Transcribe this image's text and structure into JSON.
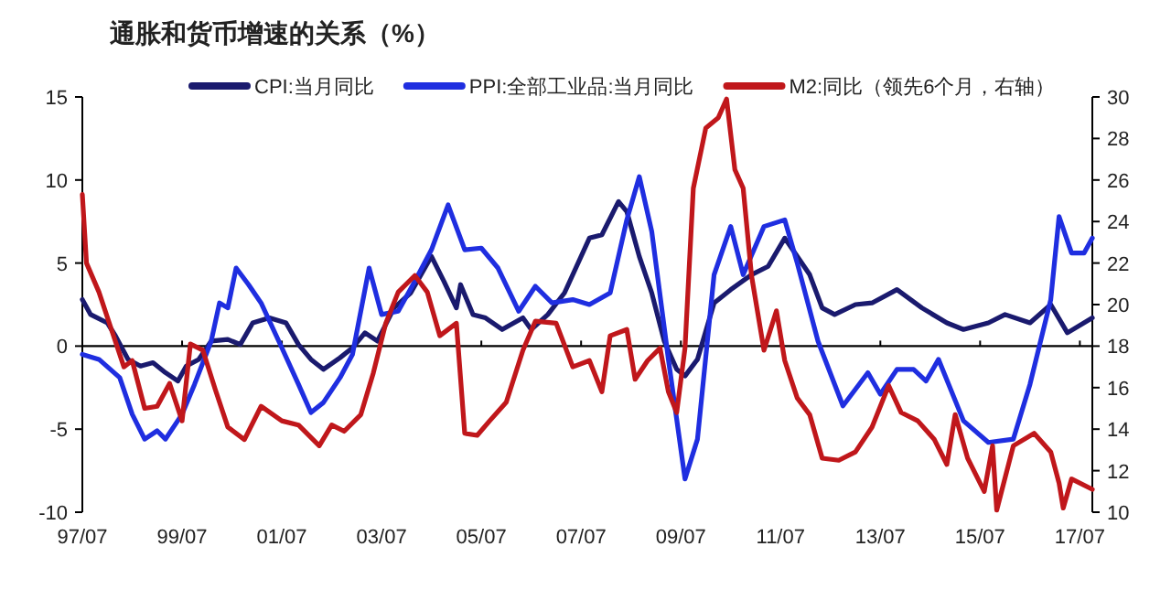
{
  "chart_data": {
    "type": "line",
    "title": "通胀和货币增速的关系（%）",
    "legend": "top",
    "xlim": [
      "1997-07",
      "2017-10"
    ],
    "xticks": [
      {
        "value": "1997-07",
        "label": "97/07"
      },
      {
        "value": "1999-07",
        "label": "99/07"
      },
      {
        "value": "2001-07",
        "label": "01/07"
      },
      {
        "value": "2003-07",
        "label": "03/07"
      },
      {
        "value": "2005-07",
        "label": "05/07"
      },
      {
        "value": "2007-07",
        "label": "07/07"
      },
      {
        "value": "2009-07",
        "label": "09/07"
      },
      {
        "value": "2011-07",
        "label": "11/07"
      },
      {
        "value": "2013-07",
        "label": "13/07"
      },
      {
        "value": "2015-07",
        "label": "15/07"
      },
      {
        "value": "2017-07",
        "label": "17/07"
      }
    ],
    "ylim": [
      -10,
      15
    ],
    "yticks": [
      -10,
      -5,
      0,
      5,
      10,
      15
    ],
    "y2lim": [
      10,
      30
    ],
    "y2ticks": [
      10,
      12,
      14,
      16,
      18,
      20,
      22,
      24,
      26,
      28,
      30
    ],
    "ref_lines": [
      {
        "axis": "y",
        "value": 0,
        "color": "#000000"
      }
    ],
    "series": [
      {
        "name": "CPI:当月同比",
        "color": "#1a1a6e",
        "x": [
          "1997-07",
          "1997-09",
          "1998-01",
          "1998-03",
          "1998-06",
          "1998-09",
          "1998-12",
          "1999-03",
          "1999-06",
          "1999-08",
          "1999-11",
          "2000-02",
          "2000-06",
          "2000-09",
          "2000-12",
          "2001-04",
          "2001-08",
          "2001-11",
          "2002-02",
          "2002-05",
          "2002-09",
          "2002-12",
          "2003-03",
          "2003-06",
          "2003-10",
          "2004-02",
          "2004-07",
          "2004-10",
          "2005-01",
          "2005-02",
          "2005-05",
          "2005-08",
          "2005-12",
          "2006-05",
          "2006-07",
          "2006-11",
          "2007-03",
          "2007-09",
          "2007-12",
          "2008-04",
          "2008-06",
          "2008-09",
          "2008-12",
          "2009-03",
          "2009-06",
          "2009-08",
          "2009-11",
          "2010-03",
          "2010-07",
          "2010-12",
          "2011-04",
          "2011-08",
          "2011-11",
          "2012-02",
          "2012-05",
          "2012-08",
          "2013-01",
          "2013-05",
          "2013-11",
          "2014-05",
          "2014-11",
          "2015-03",
          "2015-09",
          "2016-01",
          "2016-07",
          "2016-12",
          "2017-04",
          "2017-10"
        ],
        "values": [
          2.8,
          1.9,
          1.4,
          0.6,
          -0.8,
          -1.2,
          -1.0,
          -1.6,
          -2.1,
          -1.2,
          -0.8,
          0.3,
          0.4,
          0.1,
          1.4,
          1.7,
          1.4,
          0.1,
          -0.8,
          -1.4,
          -0.7,
          -0.1,
          0.8,
          0.3,
          2.3,
          3.2,
          5.4,
          3.9,
          2.3,
          3.7,
          1.9,
          1.7,
          1.0,
          1.7,
          1.0,
          1.9,
          3.2,
          6.5,
          6.7,
          8.7,
          8.1,
          5.4,
          3.2,
          0.3,
          -1.4,
          -1.8,
          -0.8,
          2.6,
          3.4,
          4.3,
          4.8,
          6.5,
          5.4,
          4.3,
          2.3,
          1.9,
          2.5,
          2.6,
          3.4,
          2.3,
          1.4,
          1.0,
          1.4,
          1.9,
          1.4,
          2.5,
          0.8,
          1.7
        ]
      },
      {
        "name": "PPI:全部工业品:当月同比",
        "color": "#1f2ee0",
        "x": [
          "1997-07",
          "1997-11",
          "1998-04",
          "1998-07",
          "1998-10",
          "1999-01",
          "1999-03",
          "1999-07",
          "1999-10",
          "2000-02",
          "2000-04",
          "2000-06",
          "2000-08",
          "2000-11",
          "2001-02",
          "2001-07",
          "2001-11",
          "2002-02",
          "2002-05",
          "2002-09",
          "2002-12",
          "2003-04",
          "2003-07",
          "2003-11",
          "2004-03",
          "2004-07",
          "2004-11",
          "2005-03",
          "2005-07",
          "2005-11",
          "2006-04",
          "2006-08",
          "2006-12",
          "2007-05",
          "2007-09",
          "2008-02",
          "2008-06",
          "2008-09",
          "2008-12",
          "2009-04",
          "2009-08",
          "2009-11",
          "2010-03",
          "2010-07",
          "2010-10",
          "2011-03",
          "2011-08",
          "2011-11",
          "2012-04",
          "2012-10",
          "2013-04",
          "2013-07",
          "2013-11",
          "2014-03",
          "2014-06",
          "2014-09",
          "2015-03",
          "2015-09",
          "2016-03",
          "2016-07",
          "2016-12",
          "2017-02",
          "2017-05",
          "2017-08",
          "2017-10"
        ],
        "values": [
          -0.5,
          -0.8,
          -1.9,
          -4.1,
          -5.6,
          -5.1,
          -5.6,
          -4.1,
          -2.3,
          0.3,
          2.6,
          2.3,
          4.7,
          3.7,
          2.6,
          -0.1,
          -2.3,
          -4.0,
          -3.4,
          -1.9,
          -0.5,
          4.7,
          1.9,
          2.1,
          3.9,
          5.8,
          8.5,
          5.8,
          5.9,
          4.7,
          2.1,
          3.6,
          2.6,
          2.8,
          2.5,
          3.2,
          7.6,
          10.2,
          6.9,
          -0.8,
          -8.0,
          -5.6,
          4.3,
          7.2,
          4.3,
          7.2,
          7.6,
          5.0,
          0.3,
          -3.6,
          -1.6,
          -2.9,
          -1.4,
          -1.4,
          -2.1,
          -0.8,
          -4.5,
          -5.8,
          -5.6,
          -2.3,
          2.8,
          7.8,
          5.6,
          5.6,
          6.5
        ]
      },
      {
        "name": "M2:同比（领先6个月，右轴）",
        "color": "#c0171b",
        "axis": "y2",
        "x": [
          "1997-07",
          "1997-08",
          "1997-11",
          "1998-02",
          "1998-05",
          "1998-07",
          "1998-10",
          "1999-01",
          "1999-04",
          "1999-07",
          "1999-09",
          "1999-12",
          "2000-03",
          "2000-06",
          "2000-10",
          "2001-02",
          "2001-07",
          "2001-11",
          "2002-04",
          "2002-07",
          "2002-10",
          "2003-02",
          "2003-05",
          "2003-08",
          "2003-11",
          "2004-03",
          "2004-06",
          "2004-09",
          "2005-01",
          "2005-03",
          "2005-06",
          "2005-09",
          "2006-01",
          "2006-05",
          "2006-08",
          "2007-01",
          "2007-05",
          "2007-09",
          "2007-12",
          "2008-02",
          "2008-06",
          "2008-08",
          "2008-11",
          "2009-02",
          "2009-04",
          "2009-06",
          "2009-08",
          "2009-10",
          "2010-01",
          "2010-04",
          "2010-06",
          "2010-08",
          "2010-10",
          "2010-12",
          "2011-03",
          "2011-06",
          "2011-08",
          "2011-11",
          "2012-02",
          "2012-05",
          "2012-09",
          "2013-01",
          "2013-05",
          "2013-09",
          "2013-12",
          "2014-04",
          "2014-08",
          "2014-11",
          "2015-01",
          "2015-04",
          "2015-08",
          "2015-10",
          "2015-11",
          "2016-03",
          "2016-08",
          "2016-12",
          "2017-02",
          "2017-03",
          "2017-05",
          "2017-10"
        ],
        "values": [
          25.3,
          22.0,
          20.6,
          18.8,
          17.0,
          17.3,
          15.0,
          15.1,
          16.2,
          14.4,
          18.1,
          17.8,
          15.9,
          14.1,
          13.5,
          15.1,
          14.4,
          14.2,
          13.2,
          14.2,
          13.9,
          14.7,
          16.7,
          19.1,
          20.6,
          21.4,
          20.6,
          18.5,
          19.1,
          13.8,
          13.7,
          14.4,
          15.3,
          17.8,
          19.2,
          19.1,
          17.0,
          17.3,
          15.8,
          18.5,
          18.8,
          16.4,
          17.3,
          17.9,
          15.8,
          14.8,
          17.9,
          25.6,
          28.5,
          29.0,
          29.9,
          26.5,
          25.6,
          21.4,
          17.8,
          19.7,
          17.3,
          15.5,
          14.7,
          12.6,
          12.5,
          12.9,
          14.1,
          16.1,
          14.8,
          14.4,
          13.5,
          12.3,
          14.7,
          12.6,
          11.0,
          13.2,
          10.1,
          13.2,
          13.8,
          12.9,
          11.4,
          10.2,
          11.6,
          11.1
        ]
      }
    ]
  }
}
